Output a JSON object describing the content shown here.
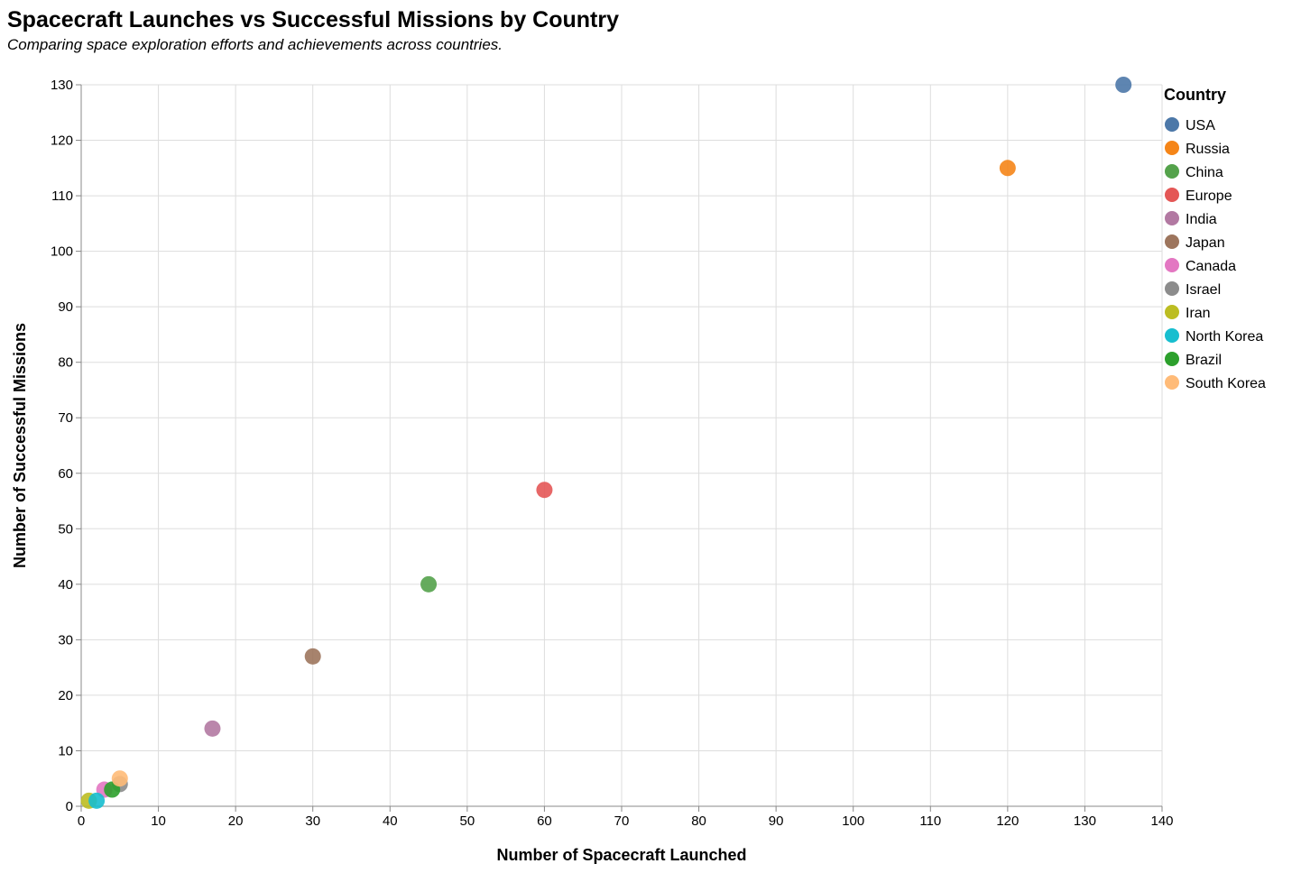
{
  "chart_data": {
    "type": "scatter",
    "title": "Spacecraft Launches vs Successful Missions by Country",
    "subtitle": "Comparing space exploration efforts and achievements across countries.",
    "xlabel": "Number of Spacecraft Launched",
    "ylabel": "Number of Successful Missions",
    "xlim": [
      0,
      140
    ],
    "ylim": [
      0,
      130
    ],
    "x_ticks": [
      0,
      10,
      20,
      30,
      40,
      50,
      60,
      70,
      80,
      90,
      100,
      110,
      120,
      130,
      140
    ],
    "y_ticks": [
      0,
      10,
      20,
      30,
      40,
      50,
      60,
      70,
      80,
      90,
      100,
      110,
      120,
      130
    ],
    "grid": true,
    "legend": {
      "title": "Country",
      "placement": "right"
    },
    "series": [
      {
        "name": "USA",
        "color": "#4c78a8",
        "x": 135,
        "y": 130
      },
      {
        "name": "Russia",
        "color": "#f58518",
        "x": 120,
        "y": 115
      },
      {
        "name": "China",
        "color": "#54a24b",
        "x": 45,
        "y": 40
      },
      {
        "name": "Europe",
        "color": "#e45756",
        "x": 60,
        "y": 57
      },
      {
        "name": "India",
        "color": "#b279a2",
        "x": 17,
        "y": 14
      },
      {
        "name": "Japan",
        "color": "#9d755d",
        "x": 30,
        "y": 27
      },
      {
        "name": "Canada",
        "color": "#e377c2",
        "x": 3,
        "y": 3
      },
      {
        "name": "Israel",
        "color": "#8c8c8c",
        "x": 5,
        "y": 4
      },
      {
        "name": "Iran",
        "color": "#bcbd22",
        "x": 1,
        "y": 1
      },
      {
        "name": "North Korea",
        "color": "#17becf",
        "x": 2,
        "y": 1
      },
      {
        "name": "Brazil",
        "color": "#2ca02c",
        "x": 4,
        "y": 3
      },
      {
        "name": "South Korea",
        "color": "#ffbb78",
        "x": 5,
        "y": 5
      }
    ]
  }
}
